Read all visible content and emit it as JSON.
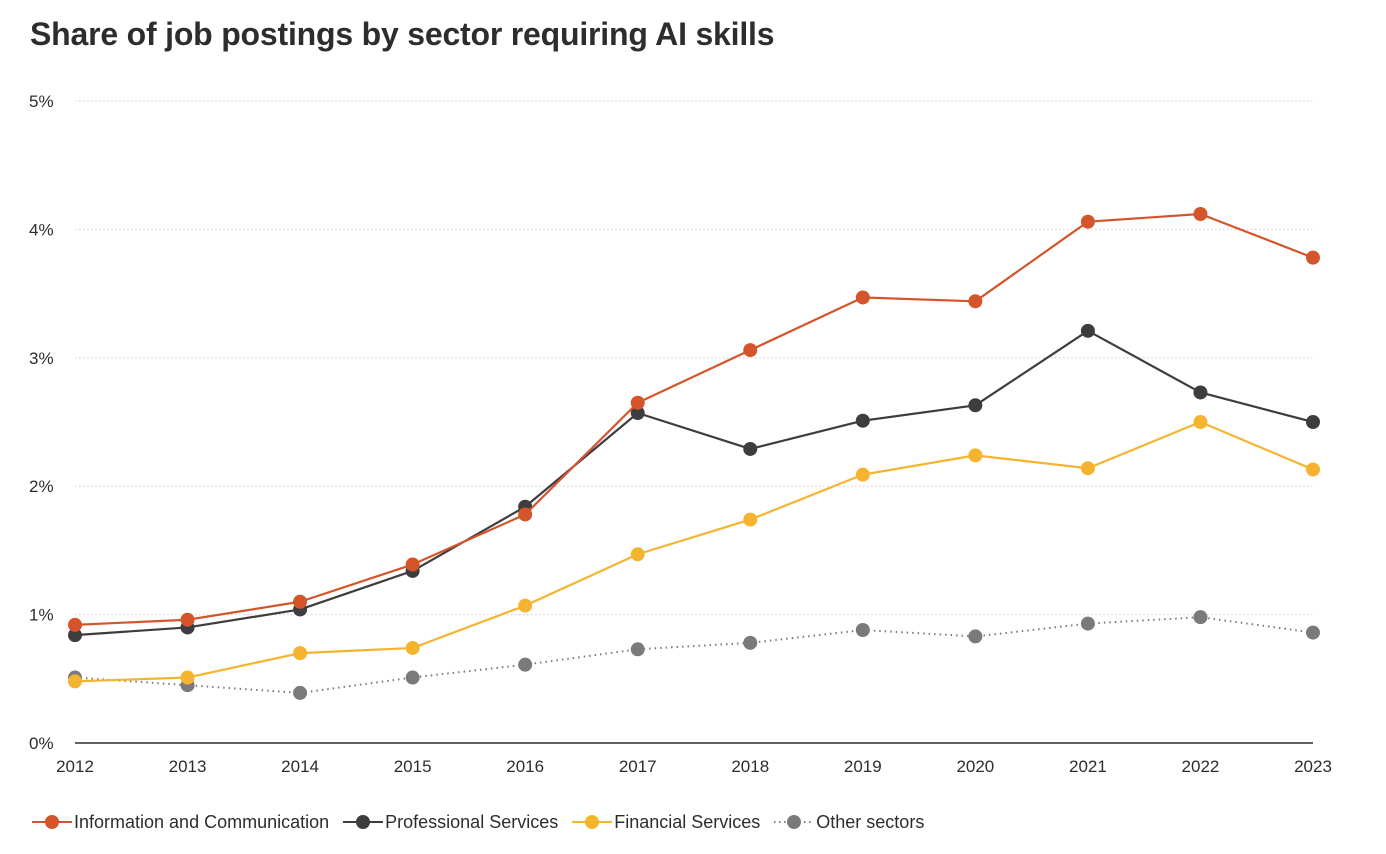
{
  "colors": {
    "info_comm": "#d4552a",
    "professional": "#3d3d3f",
    "financial": "#f5b42f",
    "other": "#7a7a7a",
    "grid": "#d0d0d0",
    "axis": "#2d2d2d"
  },
  "chart_data": {
    "type": "line",
    "title": "Share of job postings by sector requiring AI skills",
    "xlabel": "",
    "ylabel": "",
    "x": [
      "2012",
      "2013",
      "2014",
      "2015",
      "2016",
      "2017",
      "2018",
      "2019",
      "2020",
      "2021",
      "2022",
      "2023"
    ],
    "ylim": [
      0,
      5
    ],
    "yticks": [
      0,
      1,
      2,
      3,
      4,
      5
    ],
    "ytick_labels": [
      "0%",
      "1%",
      "2%",
      "3%",
      "4%",
      "5%"
    ],
    "grid": true,
    "grid_style": "dotted horizontal",
    "legend_position": "bottom-left",
    "series": [
      {
        "name": "Information and Communication",
        "color_key": "info_comm",
        "line_style": "solid",
        "values": [
          0.92,
          0.96,
          1.1,
          1.39,
          1.78,
          2.65,
          3.06,
          3.47,
          3.44,
          4.06,
          4.12,
          3.78
        ]
      },
      {
        "name": "Professional Services",
        "color_key": "professional",
        "line_style": "solid",
        "values": [
          0.84,
          0.9,
          1.04,
          1.34,
          1.84,
          2.57,
          2.29,
          2.51,
          2.63,
          3.21,
          2.73,
          2.5
        ]
      },
      {
        "name": "Financial Services",
        "color_key": "financial",
        "line_style": "solid",
        "values": [
          0.48,
          0.51,
          0.7,
          0.74,
          1.07,
          1.47,
          1.74,
          2.09,
          2.24,
          2.14,
          2.5,
          2.13
        ]
      },
      {
        "name": "Other sectors",
        "color_key": "other",
        "line_style": "dotted",
        "values": [
          0.51,
          0.45,
          0.39,
          0.51,
          0.61,
          0.73,
          0.78,
          0.88,
          0.83,
          0.93,
          0.98,
          0.86
        ]
      }
    ]
  }
}
